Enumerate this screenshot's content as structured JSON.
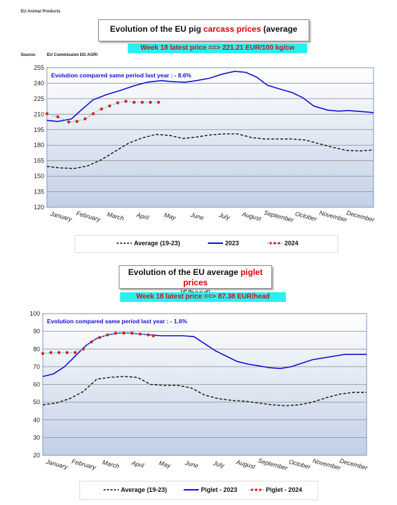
{
  "page": {
    "header_small": "EU Animal Products"
  },
  "colors": {
    "series_2023": "#1010d8",
    "series_avg": "#111111",
    "series_2024_line": "#40e0d0",
    "series_2024_dot": "#e02020",
    "banner_bg": "#29f0f0",
    "banner_text": "#d01010",
    "annotation": "#1a10d0"
  },
  "chart_data": [
    {
      "type": "line",
      "title_prefix": "Evolution of the EU pig ",
      "title_highlight": "carcass prices",
      "title_suffix": " (average class E & S)",
      "banner": "Week 18 latest price ==>  221.21 EUR/100 kg/cw",
      "source_label": "Source:",
      "source_text": "EU Commission DG AGRI",
      "annotation": "Evolution compared same period last year   : - 8.6%",
      "ylim": [
        120,
        255
      ],
      "yticks": [
        120,
        135,
        150,
        165,
        180,
        195,
        210,
        225,
        240,
        255
      ],
      "grid": true,
      "xlim": [
        0,
        12
      ],
      "months": [
        "January",
        "February",
        "March",
        "April",
        "May",
        "June",
        "July",
        "August",
        "September",
        "October",
        "November",
        "December"
      ],
      "legend": [
        "Average (19-23)",
        "2023",
        "2024"
      ],
      "series": [
        {
          "name": "Average (19-23)",
          "style": "dashed",
          "x": [
            0,
            0.5,
            1,
            1.5,
            2,
            2.5,
            3,
            3.5,
            4,
            4.5,
            5,
            5.5,
            6,
            6.5,
            7,
            7.5,
            8,
            8.5,
            9,
            9.5,
            10,
            10.5,
            11,
            11.5,
            12
          ],
          "y": [
            159.5,
            158,
            157.5,
            160,
            166,
            174,
            182,
            187,
            190.5,
            189.5,
            186.5,
            188,
            190,
            191,
            191,
            187.5,
            186,
            186,
            186,
            185,
            181.5,
            178,
            175,
            174.5,
            175.5
          ]
        },
        {
          "name": "2023",
          "style": "solid",
          "x": [
            0,
            0.4,
            0.9,
            1.3,
            1.7,
            2.2,
            2.7,
            3.2,
            3.7,
            4.2,
            4.6,
            5.1,
            5.5,
            6,
            6.4,
            6.9,
            7.3,
            7.7,
            8.1,
            8.6,
            9,
            9.4,
            9.8,
            10.3,
            10.7,
            11.1,
            11.6,
            12
          ],
          "y": [
            204,
            203,
            205.5,
            215,
            224,
            229,
            233,
            237.5,
            241,
            242.5,
            241.5,
            241,
            242.5,
            245,
            248.5,
            251.5,
            250.5,
            246,
            238,
            234,
            231,
            226,
            218,
            214,
            213,
            213.5,
            212.5,
            211.5
          ]
        },
        {
          "name": "2024",
          "style": "dots",
          "x": [
            0,
            0.4,
            0.8,
            1.1,
            1.4,
            1.7,
            2.0,
            2.3,
            2.6,
            2.9,
            3.2,
            3.5,
            3.8,
            4.1
          ],
          "y": [
            210.5,
            207.5,
            202.5,
            203,
            205.5,
            210.5,
            215,
            218,
            221,
            222.5,
            221.5,
            221.5,
            221.5,
            221.5
          ]
        }
      ]
    },
    {
      "type": "line",
      "title_prefix": "Evolution of the EU average ",
      "title_highlight": "piglet prices",
      "title_suffix": "",
      "subtitle": "(€/head)",
      "banner": "Week 18 latest price ==>  87.38 EUR/head",
      "annotation": "Evolution compared same period last year   : - 1.6%",
      "ylim": [
        20,
        100
      ],
      "yticks": [
        20,
        30,
        40,
        50,
        60,
        70,
        80,
        90,
        100
      ],
      "grid": true,
      "xlim": [
        0,
        12
      ],
      "months": [
        "January",
        "February",
        "March",
        "April",
        "May",
        "June",
        "July",
        "August",
        "September",
        "October",
        "November",
        "December"
      ],
      "legend": [
        "Average (19-23)",
        "Piglet - 2023",
        "Piglet - 2024"
      ],
      "series": [
        {
          "name": "Average (19-23)",
          "style": "dashed",
          "x": [
            0,
            0.5,
            1,
            1.5,
            2,
            2.5,
            3,
            3.5,
            4,
            4.5,
            5,
            5.5,
            6,
            6.5,
            7,
            7.5,
            8,
            8.5,
            9,
            9.5,
            10,
            10.5,
            11,
            11.5,
            12
          ],
          "y": [
            48.5,
            49.5,
            52,
            56,
            63,
            64,
            64.5,
            64,
            60,
            59.5,
            59.5,
            58,
            54,
            52,
            51,
            50.5,
            49.5,
            48.5,
            48,
            48.5,
            50,
            52.5,
            54.5,
            55.5,
            55.5
          ]
        },
        {
          "name": "Piglet - 2023",
          "style": "solid",
          "x": [
            0,
            0.4,
            0.8,
            1.2,
            1.6,
            2.0,
            2.4,
            2.8,
            3.2,
            3.6,
            4.0,
            4.4,
            4.8,
            5.2,
            5.6,
            6.0,
            6.4,
            6.8,
            7.2,
            7.6,
            8.0,
            8.4,
            8.8,
            9.2,
            9.6,
            10.0,
            10.4,
            10.8,
            11.2,
            11.6,
            12
          ],
          "y": [
            64.5,
            66,
            70,
            76,
            82,
            86,
            88,
            89,
            89,
            88.5,
            88,
            87.5,
            87.5,
            87.5,
            87,
            83,
            79,
            76,
            73,
            71.5,
            70.5,
            69.5,
            69,
            70,
            72,
            74,
            75,
            76,
            77,
            77,
            77
          ]
        },
        {
          "name": "Piglet - 2024",
          "style": "dots",
          "x": [
            0,
            0.3,
            0.6,
            0.9,
            1.2,
            1.5,
            1.8,
            2.1,
            2.4,
            2.7,
            3.0,
            3.3,
            3.6,
            3.9,
            4.1
          ],
          "y": [
            77.5,
            78,
            78,
            78,
            78,
            80,
            84,
            86.5,
            88,
            89,
            89,
            89,
            88.5,
            88,
            87.5
          ]
        }
      ]
    }
  ]
}
